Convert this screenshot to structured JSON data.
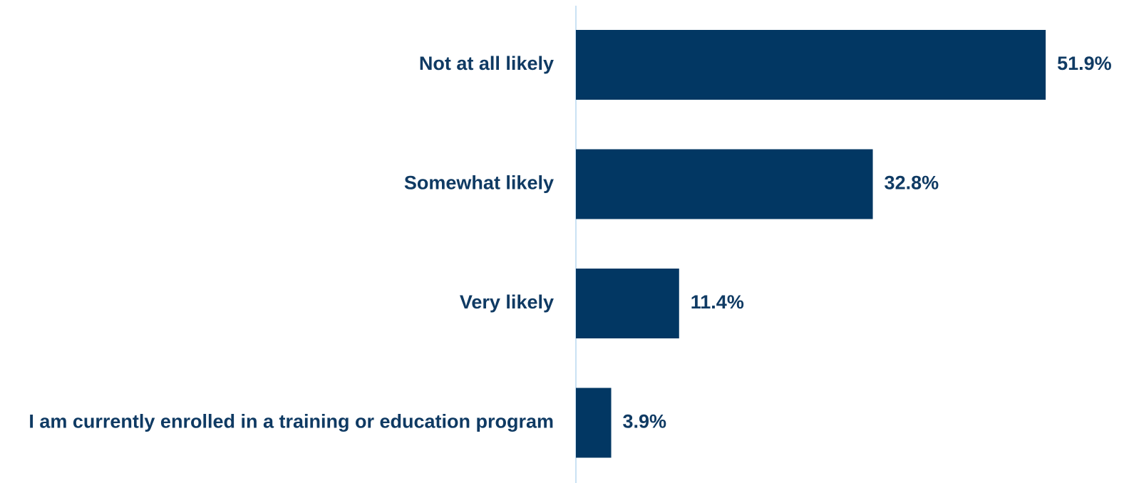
{
  "colors": {
    "bar": "#023763",
    "text": "#0f3a63",
    "axis": "#b8d8f0"
  },
  "chart_data": {
    "type": "bar",
    "orientation": "horizontal",
    "categories": [
      "Not at all likely",
      "Somewhat likely",
      "Very likely",
      "I am currently enrolled in a training or education program"
    ],
    "values": [
      51.9,
      32.8,
      11.4,
      3.9
    ],
    "value_labels": [
      "51.9%",
      "32.8%",
      "11.4%",
      "3.9%"
    ],
    "unit": "%",
    "xlim": [
      0,
      52
    ],
    "title": "",
    "xlabel": "",
    "ylabel": "",
    "grid": false,
    "legend": "none"
  }
}
